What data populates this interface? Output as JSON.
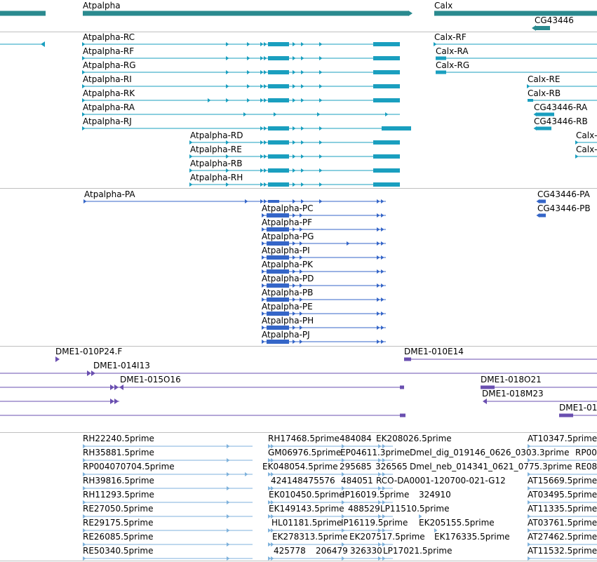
{
  "colors": {
    "gene": "#2a8a8f",
    "mrna": "#1a9fbf",
    "protein": "#3566c8",
    "insertion": "#6a4fb0",
    "est": "#7fb2dc",
    "separator": "#bfbfbf"
  },
  "tracks": {
    "genes": [
      "Atpalpha",
      "Calx",
      "CG43446"
    ],
    "transcripts": [
      "Atpalpha-RC",
      "Calx-RF",
      "Atpalpha-RF",
      "Calx-RA",
      "Atpalpha-RG",
      "Calx-RG",
      "Atpalpha-RI",
      "Calx-RE",
      "Atpalpha-RK",
      "Calx-RB",
      "Atpalpha-RA",
      "CG43446-RA",
      "Atpalpha-RJ",
      "CG43446-RB",
      "Atpalpha-RD",
      "Calx-",
      "Atpalpha-RE",
      "Calx-",
      "Atpalpha-RB",
      "Atpalpha-RH"
    ],
    "proteins": [
      "Atpalpha-PA",
      "CG43446-PA",
      "CG43446-PB",
      "Atpalpha-PC",
      "Atpalpha-PF",
      "Atpalpha-PG",
      "Atpalpha-PI",
      "Atpalpha-PK",
      "Atpalpha-PD",
      "Atpalpha-PB",
      "Atpalpha-PE",
      "Atpalpha-PH",
      "Atpalpha-PJ"
    ],
    "insertions": [
      "DME1-010P24.F",
      "DME1-010E14",
      "DME1-014I13",
      "DME1-015O16",
      "DME1-018O21",
      "DME1-018M23",
      "DME1-01"
    ],
    "ests": [
      "RH22240.5prime",
      "RH17468.5prime",
      "484084",
      "EK208026.5prime",
      "AT10347.5prime",
      "RH35881.5prime",
      "GM06976.5prime",
      "EP04611.3prime",
      "Dmel_dig_019146_0626_0303.3prime",
      "RP00",
      "RP004070704.5prime",
      "EK048054.5prime",
      "295685",
      "326565",
      "Dmel_neb_014341_0621_0775.3prime",
      "RE08",
      "RH39816.5prime",
      "424148475576",
      "484051",
      "RCO-DA0001-120700-021-G12",
      "AT15669.5prime",
      "RH11293.5prime",
      "EK010450.5prime",
      "IP16019.5prime",
      "324910",
      "AT03495.5prime",
      "RE27050.5prime",
      "EK149143.5prime",
      "488529",
      "LP11510.5prime",
      "AT11335.5prime",
      "RE29175.5prime",
      "HL01181.5prime",
      "IP16119.5prime",
      "EK205155.5prime",
      "AT03761.5prime",
      "RE26085.5prime",
      "EK278313.5prime",
      "EK207517.5prime",
      "EK176335.5prime",
      "AT27462.5prime",
      "RE50340.5prime",
      "425778",
      "206479",
      "326330",
      "LP17021.5prime",
      "AT11532.5prime"
    ]
  }
}
